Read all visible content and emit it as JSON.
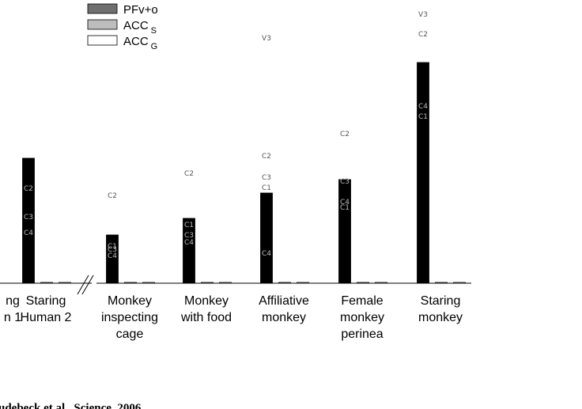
{
  "chart_data": {
    "type": "bar",
    "categories": [
      {
        "lines": [
          "ng",
          "n 1"
        ]
      },
      {
        "lines": [
          "Staring",
          "Human 2"
        ]
      },
      {
        "lines": [
          "Monkey",
          "inspecting",
          "cage"
        ]
      },
      {
        "lines": [
          "Monkey",
          "with food"
        ]
      },
      {
        "lines": [
          "Affiliative",
          "monkey"
        ]
      },
      {
        "lines": [
          "Female",
          "monkey",
          "perinea"
        ]
      },
      {
        "lines": [
          "Staring",
          "monkey"
        ]
      }
    ],
    "series": [
      {
        "name": "PFv+o",
        "legend_sub": "",
        "color": "#000000",
        "values": [
          null,
          158,
          61,
          82,
          114,
          131,
          279
        ]
      },
      {
        "name": "ACC",
        "legend_sub": "S",
        "color": "#bdbdbd",
        "values": [
          null,
          0,
          0,
          0,
          0,
          0,
          0
        ]
      },
      {
        "name": "ACC",
        "legend_sub": "G",
        "color": "#ffffff",
        "values": [
          null,
          1,
          1,
          1,
          1,
          1,
          1
        ]
      }
    ],
    "legend_swatch_colors": [
      "#6f6f6f",
      "#bdbdbd",
      "#ffffff"
    ],
    "annotations": [
      {
        "cat": 1,
        "level": "inside",
        "y": 120,
        "text": "C2"
      },
      {
        "cat": 1,
        "level": "inside",
        "y": 84,
        "text": "C3"
      },
      {
        "cat": 1,
        "level": "inside",
        "y": 64,
        "text": "C4"
      },
      {
        "cat": 2,
        "level": "above",
        "y": 111,
        "text": "C2"
      },
      {
        "cat": 2,
        "level": "inside",
        "y": 47,
        "text": "C1"
      },
      {
        "cat": 2,
        "level": "inside",
        "y": 43,
        "text": "C3"
      },
      {
        "cat": 2,
        "level": "inside",
        "y": 35,
        "text": "C4"
      },
      {
        "cat": 3,
        "level": "above",
        "y": 139,
        "text": "C2"
      },
      {
        "cat": 3,
        "level": "inside",
        "y": 74,
        "text": "C1"
      },
      {
        "cat": 3,
        "level": "inside",
        "y": 61,
        "text": "C3"
      },
      {
        "cat": 3,
        "level": "inside",
        "y": 52,
        "text": "C4"
      },
      {
        "cat": 4,
        "level": "above",
        "y": 310,
        "text": "V3"
      },
      {
        "cat": 4,
        "level": "above",
        "y": 161,
        "text": "C2"
      },
      {
        "cat": 4,
        "level": "above",
        "y": 134,
        "text": "C3"
      },
      {
        "cat": 4,
        "level": "above",
        "y": 121,
        "text": "C1"
      },
      {
        "cat": 4,
        "level": "inside",
        "y": 38,
        "text": "C4"
      },
      {
        "cat": 5,
        "level": "above",
        "y": 189,
        "text": "C2"
      },
      {
        "cat": 5,
        "level": "inside",
        "y": 129,
        "text": "C3"
      },
      {
        "cat": 5,
        "level": "inside",
        "y": 103,
        "text": "C4"
      },
      {
        "cat": 5,
        "level": "inside",
        "y": 96,
        "text": "C1"
      },
      {
        "cat": 6,
        "level": "above",
        "y": 340,
        "text": "V3"
      },
      {
        "cat": 6,
        "level": "above",
        "y": 315,
        "text": "C2"
      },
      {
        "cat": 6,
        "level": "inside",
        "y": 224,
        "text": "C4"
      },
      {
        "cat": 6,
        "level": "inside",
        "y": 211,
        "text": "C1"
      }
    ],
    "ylim": [
      0,
      360
    ],
    "axis_break": "between Staring Human 2 and Monkey inspecting cage",
    "legend_placement": "top-left",
    "grid": false,
    "citation": "udebeck et al., Science, 2006"
  }
}
